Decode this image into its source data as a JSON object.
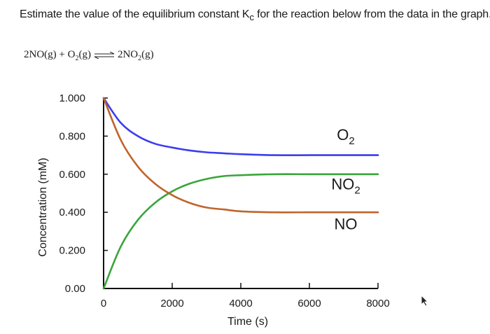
{
  "question": {
    "prompt_prefix": "Estimate the value of the equilibrium constant K",
    "prompt_sub": "c",
    "prompt_suffix": " for the reaction below from the data in the graph.",
    "reaction_left": "2NO(g) + O",
    "reaction_left_sub": "2",
    "reaction_left_end": "(g)",
    "reaction_right": "2NO",
    "reaction_right_sub": "2",
    "reaction_right_end": "(g)"
  },
  "chart_data": {
    "type": "line",
    "title": "",
    "xlabel": "Time (s)",
    "ylabel": "Concentration (mM)",
    "xlim": [
      0,
      8000
    ],
    "ylim": [
      0,
      1.0
    ],
    "x_ticks": [
      0,
      2000,
      4000,
      6000,
      8000
    ],
    "x_tick_labels": [
      "0",
      "2000",
      "4000",
      "6000",
      "8000"
    ],
    "y_ticks": [
      0,
      0.2,
      0.4,
      0.6,
      0.8,
      1.0
    ],
    "y_tick_labels": [
      "0.00",
      "0.200",
      "0.400",
      "0.600",
      "0.800",
      "1.000"
    ],
    "grid": false,
    "legend": "direct-labels-right",
    "x": [
      0,
      500,
      1000,
      1500,
      2000,
      2500,
      3000,
      3500,
      4000,
      5000,
      6000,
      7000,
      8000
    ],
    "series": [
      {
        "name": "O",
        "name_sub": "2",
        "color": "#3b3df0",
        "values": [
          1.0,
          0.87,
          0.8,
          0.76,
          0.74,
          0.725,
          0.715,
          0.71,
          0.705,
          0.7,
          0.7,
          0.7,
          0.7
        ]
      },
      {
        "name": "NO",
        "name_sub": "2",
        "color": "#3aa53a",
        "values": [
          0.0,
          0.22,
          0.36,
          0.45,
          0.51,
          0.55,
          0.575,
          0.59,
          0.595,
          0.6,
          0.6,
          0.6,
          0.6
        ]
      },
      {
        "name": "NO",
        "name_sub": "",
        "color": "#c0642a",
        "values": [
          1.0,
          0.78,
          0.64,
          0.55,
          0.49,
          0.45,
          0.425,
          0.415,
          0.405,
          0.4,
          0.4,
          0.4,
          0.4
        ]
      }
    ]
  },
  "icons": {
    "cursor": "mouse-pointer-icon"
  }
}
